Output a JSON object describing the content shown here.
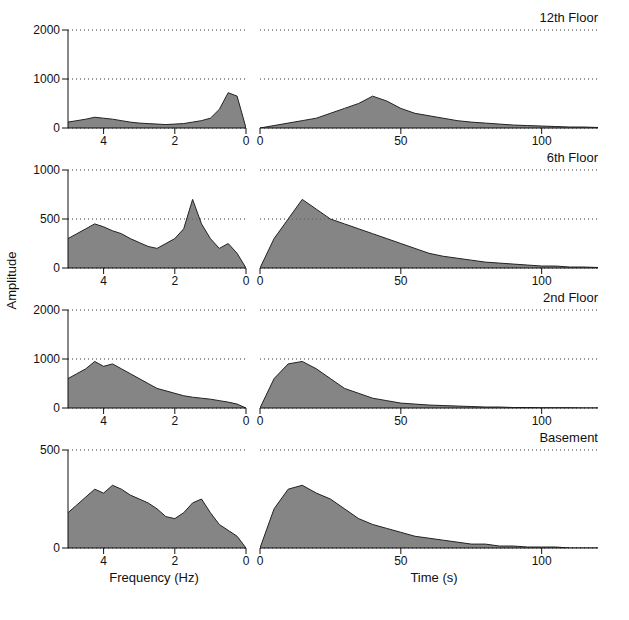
{
  "chart_data": {
    "type": "waterfall",
    "grid": true,
    "y_label": "Amplitude",
    "frequency_label": "Frequency (Hz)",
    "time_label": "Time (s)",
    "frequency_lim": [
      5,
      0
    ],
    "frequency_ticks": [
      4,
      2,
      0
    ],
    "time_lim": [
      0,
      120
    ],
    "time_ticks": [
      0,
      50,
      100
    ],
    "color": "#666666",
    "frequency": [
      0,
      0.25,
      0.5,
      0.75,
      1,
      1.25,
      1.5,
      1.75,
      2,
      2.25,
      2.5,
      2.75,
      3,
      3.25,
      3.5,
      3.75,
      4,
      4.25,
      4.5,
      4.75,
      5
    ],
    "time": [
      0,
      5,
      10,
      15,
      20,
      25,
      30,
      35,
      40,
      45,
      50,
      55,
      60,
      65,
      70,
      75,
      80,
      85,
      90,
      95,
      100,
      105,
      110,
      115,
      120
    ],
    "panels": [
      {
        "title": "12th Floor",
        "ylim": [
          0,
          2000
        ],
        "yticks": [
          0,
          1000,
          2000
        ],
        "frequency_values": [
          0,
          650,
          720,
          380,
          200,
          150,
          120,
          90,
          80,
          70,
          80,
          90,
          100,
          120,
          150,
          180,
          200,
          220,
          180,
          150,
          120
        ],
        "time_values": [
          0,
          50,
          100,
          150,
          200,
          300,
          400,
          500,
          650,
          550,
          400,
          300,
          250,
          200,
          150,
          120,
          100,
          80,
          60,
          50,
          40,
          30,
          20,
          20,
          10
        ]
      },
      {
        "title": "6th Floor",
        "ylim": [
          0,
          1000
        ],
        "yticks": [
          0,
          500,
          1000
        ],
        "frequency_values": [
          0,
          150,
          250,
          200,
          300,
          450,
          700,
          400,
          300,
          250,
          200,
          220,
          260,
          300,
          350,
          380,
          420,
          450,
          400,
          350,
          300
        ],
        "time_values": [
          0,
          300,
          500,
          700,
          600,
          500,
          450,
          400,
          350,
          300,
          250,
          200,
          150,
          120,
          100,
          80,
          60,
          50,
          40,
          30,
          20,
          20,
          10,
          10,
          5
        ]
      },
      {
        "title": "2nd Floor",
        "ylim": [
          0,
          2000
        ],
        "yticks": [
          0,
          1000,
          2000
        ],
        "frequency_values": [
          0,
          80,
          120,
          150,
          180,
          200,
          220,
          250,
          300,
          350,
          400,
          500,
          600,
          700,
          800,
          900,
          850,
          950,
          800,
          700,
          600
        ],
        "time_values": [
          0,
          600,
          900,
          950,
          800,
          600,
          400,
          300,
          200,
          150,
          100,
          80,
          60,
          50,
          40,
          30,
          20,
          20,
          10,
          10,
          5,
          5,
          5,
          0,
          0
        ]
      },
      {
        "title": "Basement",
        "ylim": [
          0,
          500
        ],
        "yticks": [
          0,
          500
        ],
        "frequency_values": [
          0,
          60,
          90,
          120,
          180,
          250,
          230,
          180,
          150,
          160,
          200,
          230,
          250,
          270,
          300,
          320,
          280,
          300,
          260,
          220,
          180
        ],
        "time_values": [
          0,
          200,
          300,
          320,
          280,
          250,
          200,
          150,
          120,
          100,
          80,
          60,
          50,
          40,
          30,
          20,
          20,
          10,
          10,
          5,
          5,
          5,
          0,
          0,
          0
        ]
      }
    ]
  }
}
